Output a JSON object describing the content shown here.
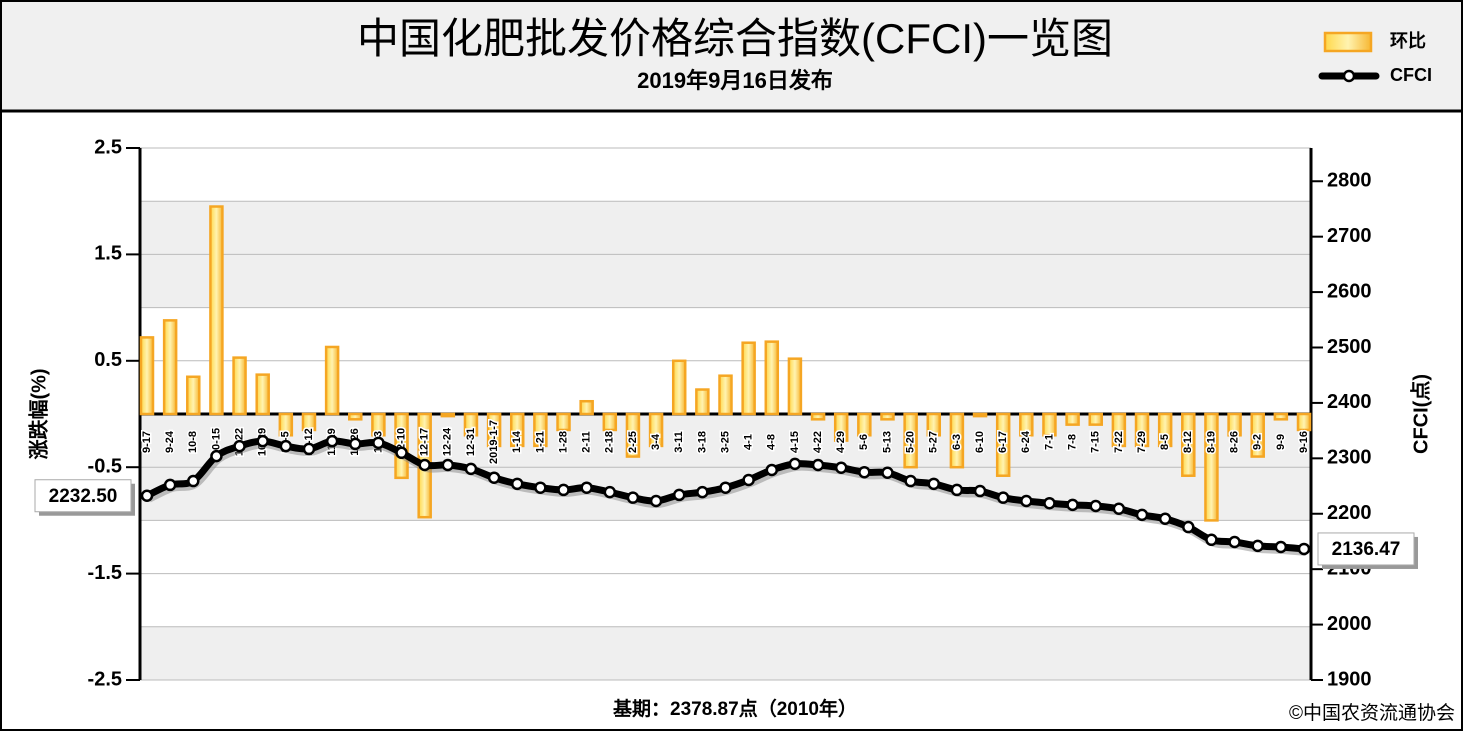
{
  "chart_data": {
    "type": "bar",
    "title": "中国化肥批发价格综合指数(CFCI)一览图",
    "subtitle": "2019年9月16日发布",
    "ylabel": "涨跌幅(%)",
    "y2label": "CFCI(点)",
    "footnote": "基期：2378.87点（2010年）",
    "source": "©中国农资流通协会",
    "categories": [
      "9-17",
      "9-24",
      "10-8",
      "10-15",
      "10-22",
      "10-29",
      "11-5",
      "11-12",
      "11-19",
      "11-26",
      "12-3",
      "12-10",
      "12-17",
      "12-24",
      "12-31",
      "2019-1-7",
      "1-14",
      "1-21",
      "1-28",
      "2-11",
      "2-18",
      "2-25",
      "3-4",
      "3-11",
      "3-18",
      "3-25",
      "4-1",
      "4-8",
      "4-15",
      "4-22",
      "4-29",
      "5-6",
      "5-13",
      "5-20",
      "5-27",
      "6-3",
      "6-10",
      "6-17",
      "6-24",
      "7-1",
      "7-8",
      "7-15",
      "7-22",
      "7-29",
      "8-5",
      "8-12",
      "8-19",
      "8-26",
      "9-2",
      "9-9",
      "9-16"
    ],
    "series": [
      {
        "name": "环比",
        "type": "bar",
        "color": "#f5a623",
        "values": [
          0.72,
          0.88,
          0.35,
          1.95,
          0.53,
          0.37,
          -0.2,
          -0.15,
          0.63,
          -0.05,
          -0.2,
          -0.6,
          -0.97,
          -0.02,
          -0.2,
          -0.3,
          -0.3,
          -0.3,
          -0.15,
          0.12,
          -0.15,
          -0.4,
          -0.3,
          0.5,
          0.23,
          0.36,
          0.67,
          0.68,
          0.52,
          -0.05,
          -0.25,
          -0.2,
          -0.05,
          -0.5,
          -0.2,
          -0.5,
          -0.02,
          -0.58,
          -0.2,
          -0.2,
          -0.1,
          -0.1,
          -0.3,
          -0.3,
          -0.3,
          -0.58,
          -1.0,
          -0.2,
          -0.4,
          -0.05,
          -0.15
        ]
      },
      {
        "name": "CFCI",
        "type": "line",
        "axis": "y2",
        "color": "#000000",
        "values": [
          2232.5,
          2252,
          2259,
          2304,
          2322,
          2331,
          2322,
          2317,
          2331,
          2326,
          2328,
          2310,
          2288,
          2288,
          2281,
          2265,
          2254,
          2247,
          2243,
          2247,
          2239,
          2229,
          2223,
          2234,
          2239,
          2247,
          2261,
          2279,
          2290,
          2288,
          2283,
          2275,
          2274,
          2259,
          2254,
          2243,
          2241,
          2229,
          2223,
          2219,
          2216,
          2214,
          2209,
          2198,
          2191,
          2176,
          2153,
          2149,
          2142,
          2140,
          2136.47
        ],
        "value_labels": [
          "2232.50",
          null,
          null,
          null,
          null,
          null,
          null,
          null,
          null,
          null,
          null,
          null,
          null,
          null,
          null,
          null,
          null,
          null,
          null,
          null,
          null,
          null,
          null,
          null,
          null,
          null,
          null,
          null,
          null,
          null,
          null,
          null,
          null,
          null,
          null,
          null,
          null,
          null,
          null,
          null,
          null,
          null,
          null,
          null,
          null,
          null,
          null,
          null,
          null,
          null,
          "2136.47"
        ]
      }
    ],
    "ylim": [
      -2.5,
      2.5
    ],
    "yticks": [
      2.5,
      1.5,
      0.5,
      -0.5,
      -1.5,
      -2.5
    ],
    "y2lim": [
      1900,
      2860
    ],
    "y2ticks": [
      1900,
      2000,
      2100,
      2200,
      2300,
      2400,
      2500,
      2600,
      2700,
      2800
    ],
    "grid": true,
    "legend": "top-right"
  }
}
